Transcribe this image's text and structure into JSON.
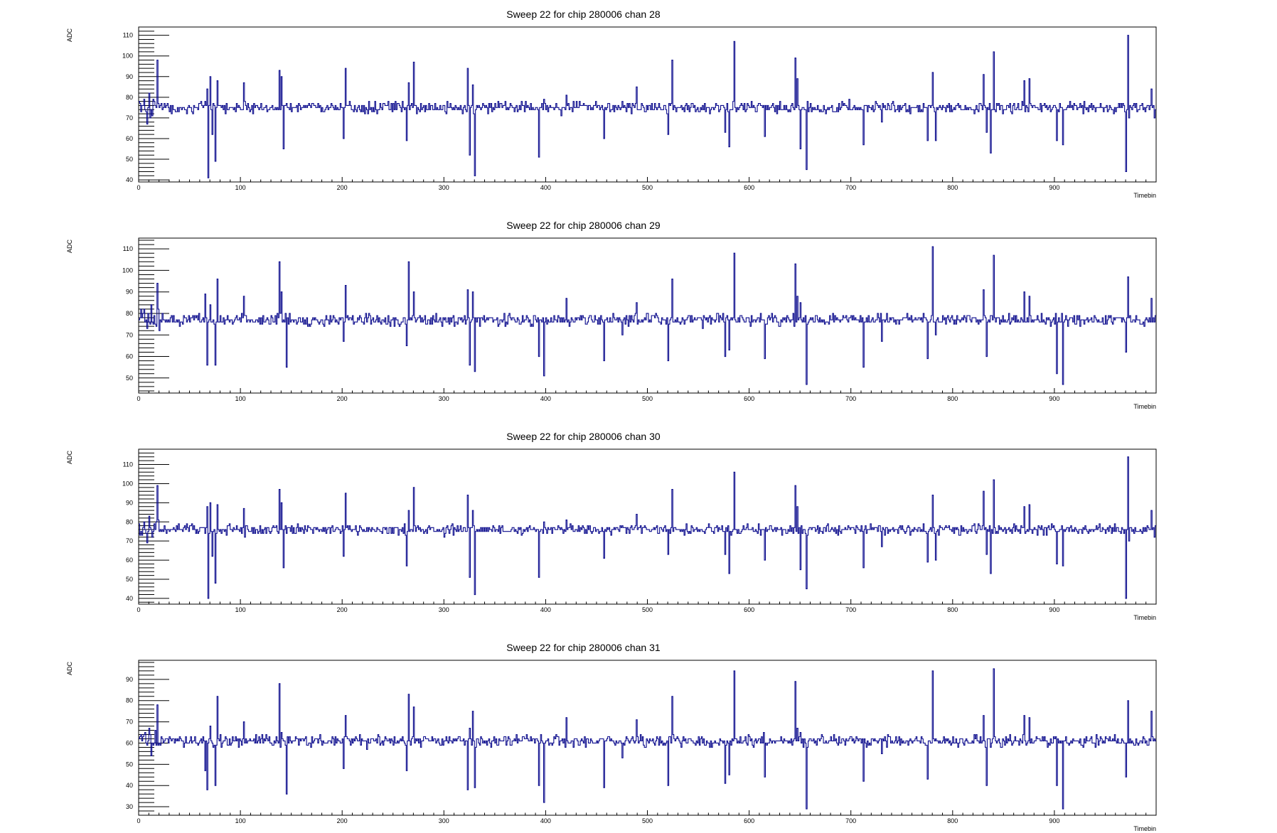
{
  "colors": {
    "trace": "#0a0a8c",
    "frame": "#000000",
    "background": "#ffffff"
  },
  "chart_data": [
    {
      "type": "line",
      "title": "Sweep 22 for chip 280006 chan 28",
      "xlabel": "Timebin",
      "ylabel": "ADC",
      "xlim": [
        0,
        1000
      ],
      "ylim": [
        39,
        114
      ],
      "xticks": [
        "0",
        "100",
        "200",
        "300",
        "400",
        "500",
        "600",
        "700",
        "800",
        "900"
      ],
      "yticks": [
        "40",
        "50",
        "60",
        "70",
        "80",
        "90",
        "100",
        "110"
      ],
      "baseline": 75,
      "spikes": [
        [
          8,
          67
        ],
        [
          10,
          82
        ],
        [
          14,
          79
        ],
        [
          18,
          98
        ],
        [
          67,
          84
        ],
        [
          68,
          41
        ],
        [
          70,
          90
        ],
        [
          72,
          62
        ],
        [
          75,
          49
        ],
        [
          77,
          88
        ],
        [
          103,
          87
        ],
        [
          138,
          93
        ],
        [
          140,
          90
        ],
        [
          142,
          55
        ],
        [
          201,
          60
        ],
        [
          203,
          94
        ],
        [
          263,
          59
        ],
        [
          265,
          87
        ],
        [
          270,
          97
        ],
        [
          323,
          94
        ],
        [
          325,
          52
        ],
        [
          328,
          86
        ],
        [
          330,
          42
        ],
        [
          393,
          51
        ],
        [
          398,
          79
        ],
        [
          420,
          81
        ],
        [
          457,
          60
        ],
        [
          475,
          78
        ],
        [
          489,
          85
        ],
        [
          520,
          62
        ],
        [
          524,
          98
        ],
        [
          576,
          63
        ],
        [
          580,
          56
        ],
        [
          585,
          107
        ],
        [
          615,
          61
        ],
        [
          645,
          99
        ],
        [
          647,
          89
        ],
        [
          650,
          55
        ],
        [
          656,
          45
        ],
        [
          712,
          57
        ],
        [
          730,
          68
        ],
        [
          775,
          59
        ],
        [
          780,
          92
        ],
        [
          783,
          59
        ],
        [
          830,
          91
        ],
        [
          833,
          63
        ],
        [
          837,
          53
        ],
        [
          840,
          102
        ],
        [
          870,
          88
        ],
        [
          875,
          89
        ],
        [
          902,
          59
        ],
        [
          908,
          57
        ],
        [
          970,
          44
        ],
        [
          972,
          110
        ],
        [
          973,
          70
        ],
        [
          995,
          84
        ],
        [
          998,
          70
        ]
      ]
    },
    {
      "type": "line",
      "title": "Sweep 22 for chip 280006 chan 29",
      "xlabel": "Timebin",
      "ylabel": "ADC",
      "xlim": [
        0,
        1000
      ],
      "ylim": [
        43,
        115
      ],
      "xticks": [
        "0",
        "100",
        "200",
        "300",
        "400",
        "500",
        "600",
        "700",
        "800",
        "900"
      ],
      "yticks": [
        "50",
        "60",
        "70",
        "80",
        "90",
        "100",
        "110"
      ],
      "baseline": 77,
      "spikes": [
        [
          8,
          73
        ],
        [
          12,
          84
        ],
        [
          16,
          75
        ],
        [
          18,
          94
        ],
        [
          20,
          72
        ],
        [
          65,
          89
        ],
        [
          67,
          56
        ],
        [
          70,
          84
        ],
        [
          75,
          56
        ],
        [
          77,
          96
        ],
        [
          103,
          88
        ],
        [
          138,
          104
        ],
        [
          140,
          90
        ],
        [
          145,
          55
        ],
        [
          201,
          67
        ],
        [
          203,
          93
        ],
        [
          263,
          65
        ],
        [
          265,
          104
        ],
        [
          270,
          90
        ],
        [
          323,
          91
        ],
        [
          325,
          56
        ],
        [
          328,
          90
        ],
        [
          330,
          53
        ],
        [
          393,
          60
        ],
        [
          398,
          51
        ],
        [
          420,
          87
        ],
        [
          457,
          58
        ],
        [
          475,
          70
        ],
        [
          489,
          85
        ],
        [
          520,
          58
        ],
        [
          524,
          96
        ],
        [
          576,
          60
        ],
        [
          580,
          63
        ],
        [
          585,
          108
        ],
        [
          615,
          59
        ],
        [
          645,
          103
        ],
        [
          647,
          88
        ],
        [
          650,
          85
        ],
        [
          656,
          47
        ],
        [
          712,
          55
        ],
        [
          730,
          67
        ],
        [
          775,
          59
        ],
        [
          780,
          111
        ],
        [
          783,
          70
        ],
        [
          830,
          91
        ],
        [
          833,
          60
        ],
        [
          840,
          107
        ],
        [
          870,
          90
        ],
        [
          875,
          88
        ],
        [
          902,
          52
        ],
        [
          908,
          47
        ],
        [
          970,
          62
        ],
        [
          972,
          97
        ],
        [
          995,
          87
        ]
      ]
    },
    {
      "type": "line",
      "title": "Sweep 22 for chip 280006 chan 30",
      "xlabel": "Timebin",
      "ylabel": "ADC",
      "xlim": [
        0,
        1000
      ],
      "ylim": [
        37,
        118
      ],
      "xticks": [
        "0",
        "100",
        "200",
        "300",
        "400",
        "500",
        "600",
        "700",
        "800",
        "900"
      ],
      "yticks": [
        "40",
        "50",
        "60",
        "70",
        "80",
        "90",
        "100",
        "110"
      ],
      "baseline": 76,
      "spikes": [
        [
          8,
          69
        ],
        [
          10,
          83
        ],
        [
          14,
          75
        ],
        [
          18,
          99
        ],
        [
          67,
          88
        ],
        [
          68,
          40
        ],
        [
          70,
          90
        ],
        [
          72,
          62
        ],
        [
          75,
          48
        ],
        [
          77,
          89
        ],
        [
          103,
          87
        ],
        [
          138,
          97
        ],
        [
          140,
          90
        ],
        [
          142,
          56
        ],
        [
          201,
          62
        ],
        [
          203,
          95
        ],
        [
          263,
          57
        ],
        [
          265,
          86
        ],
        [
          270,
          98
        ],
        [
          323,
          94
        ],
        [
          325,
          51
        ],
        [
          328,
          86
        ],
        [
          330,
          42
        ],
        [
          393,
          51
        ],
        [
          398,
          80
        ],
        [
          420,
          81
        ],
        [
          457,
          61
        ],
        [
          475,
          78
        ],
        [
          489,
          84
        ],
        [
          520,
          63
        ],
        [
          524,
          97
        ],
        [
          576,
          63
        ],
        [
          580,
          53
        ],
        [
          585,
          106
        ],
        [
          615,
          60
        ],
        [
          645,
          99
        ],
        [
          647,
          88
        ],
        [
          650,
          55
        ],
        [
          656,
          45
        ],
        [
          712,
          56
        ],
        [
          730,
          67
        ],
        [
          775,
          59
        ],
        [
          780,
          94
        ],
        [
          783,
          60
        ],
        [
          830,
          96
        ],
        [
          833,
          63
        ],
        [
          837,
          53
        ],
        [
          840,
          102
        ],
        [
          870,
          88
        ],
        [
          875,
          89
        ],
        [
          902,
          58
        ],
        [
          908,
          57
        ],
        [
          970,
          40
        ],
        [
          972,
          114
        ],
        [
          973,
          70
        ],
        [
          995,
          86
        ],
        [
          998,
          72
        ]
      ]
    },
    {
      "type": "line",
      "title": "Sweep 22 for chip 280006 chan 31",
      "xlabel": "Timebin",
      "ylabel": "ADC",
      "xlim": [
        0,
        1000
      ],
      "ylim": [
        26,
        99
      ],
      "xticks": [
        "0",
        "100",
        "200",
        "300",
        "400",
        "500",
        "600",
        "700",
        "800",
        "900"
      ],
      "yticks": [
        "30",
        "40",
        "50",
        "60",
        "70",
        "80",
        "90"
      ],
      "baseline": 61,
      "spikes": [
        [
          8,
          59
        ],
        [
          10,
          67
        ],
        [
          12,
          54
        ],
        [
          16,
          66
        ],
        [
          18,
          78
        ],
        [
          65,
          47
        ],
        [
          67,
          38
        ],
        [
          70,
          68
        ],
        [
          75,
          40
        ],
        [
          77,
          82
        ],
        [
          103,
          70
        ],
        [
          138,
          88
        ],
        [
          140,
          65
        ],
        [
          145,
          36
        ],
        [
          201,
          48
        ],
        [
          203,
          73
        ],
        [
          263,
          47
        ],
        [
          265,
          83
        ],
        [
          270,
          77
        ],
        [
          323,
          38
        ],
        [
          325,
          67
        ],
        [
          328,
          75
        ],
        [
          330,
          39
        ],
        [
          393,
          40
        ],
        [
          398,
          32
        ],
        [
          420,
          72
        ],
        [
          457,
          39
        ],
        [
          475,
          53
        ],
        [
          489,
          71
        ],
        [
          520,
          40
        ],
        [
          524,
          82
        ],
        [
          576,
          41
        ],
        [
          580,
          45
        ],
        [
          585,
          94
        ],
        [
          615,
          44
        ],
        [
          645,
          89
        ],
        [
          647,
          67
        ],
        [
          650,
          65
        ],
        [
          656,
          29
        ],
        [
          712,
          42
        ],
        [
          730,
          55
        ],
        [
          775,
          43
        ],
        [
          780,
          94
        ],
        [
          783,
          62
        ],
        [
          830,
          73
        ],
        [
          833,
          40
        ],
        [
          840,
          95
        ],
        [
          870,
          73
        ],
        [
          875,
          72
        ],
        [
          902,
          40
        ],
        [
          908,
          29
        ],
        [
          970,
          44
        ],
        [
          972,
          80
        ],
        [
          995,
          75
        ]
      ]
    }
  ]
}
